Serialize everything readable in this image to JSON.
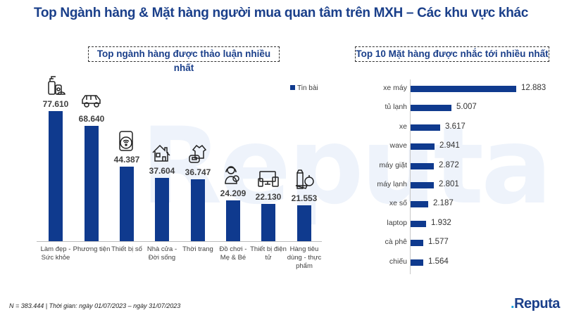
{
  "title": "Top Ngành hàng & Mặt hàng người mua quan tâm trên MXH – Các khu vực khác",
  "watermark": "Reputa",
  "left_panel": {
    "title": "Top ngành hàng được thảo luận nhiều nhất",
    "legend": "Tin bài"
  },
  "right_panel": {
    "title": "Top 10 Mặt hàng được nhắc tới nhiều nhất"
  },
  "footer": {
    "note": "N = 383.444 | Thời gian: ngày 01/07/2023 – ngày 31/07/2023",
    "logo": "Reputa"
  },
  "colors": {
    "bar": "#0f3a8e",
    "title": "#1a3f8a",
    "logo_dot": "#1aa3e0"
  },
  "chart_data": [
    {
      "type": "bar",
      "title": "Top ngành hàng được thảo luận nhiều nhất",
      "categories": [
        "Làm đẹp - Sức khỏe",
        "Phương tiện",
        "Thiết bị số",
        "Nhà cửa - Đời sống",
        "Thời trang",
        "Đồ chơi - Mẹ & Bé",
        "Thiết bị điện tử",
        "Hàng tiêu dùng - thực phẩm"
      ],
      "series": [
        {
          "name": "Tin bài",
          "values": [
            77610,
            68640,
            44387,
            37604,
            36747,
            24209,
            22130,
            21553
          ]
        }
      ],
      "value_labels": [
        "77.610",
        "68.640",
        "44.387",
        "37.604",
        "36.747",
        "24.209",
        "22.130",
        "21.553"
      ],
      "icons": [
        "cosmetics-icon",
        "car-icon",
        "smartphone-wifi-icon",
        "house-icon",
        "clothing-bag-icon",
        "mother-baby-icon",
        "devices-icon",
        "groceries-icon"
      ],
      "legend_position": "top-right",
      "grid": false
    },
    {
      "type": "bar",
      "orientation": "horizontal",
      "title": "Top 10 Mặt hàng được nhắc tới nhiều nhất",
      "categories": [
        "xe máy",
        "tủ lạnh",
        "xe",
        "wave",
        "máy giặt",
        "máy lạnh",
        "xe số",
        "laptop",
        "cà phê",
        "chiếu"
      ],
      "values": [
        12883,
        5007,
        3617,
        2941,
        2872,
        2801,
        2187,
        1932,
        1577,
        1564
      ],
      "value_labels": [
        "12.883",
        "5.007",
        "3.617",
        "2.941",
        "2.872",
        "2.801",
        "2.187",
        "1.932",
        "1.577",
        "1.564"
      ],
      "grid": false
    }
  ]
}
